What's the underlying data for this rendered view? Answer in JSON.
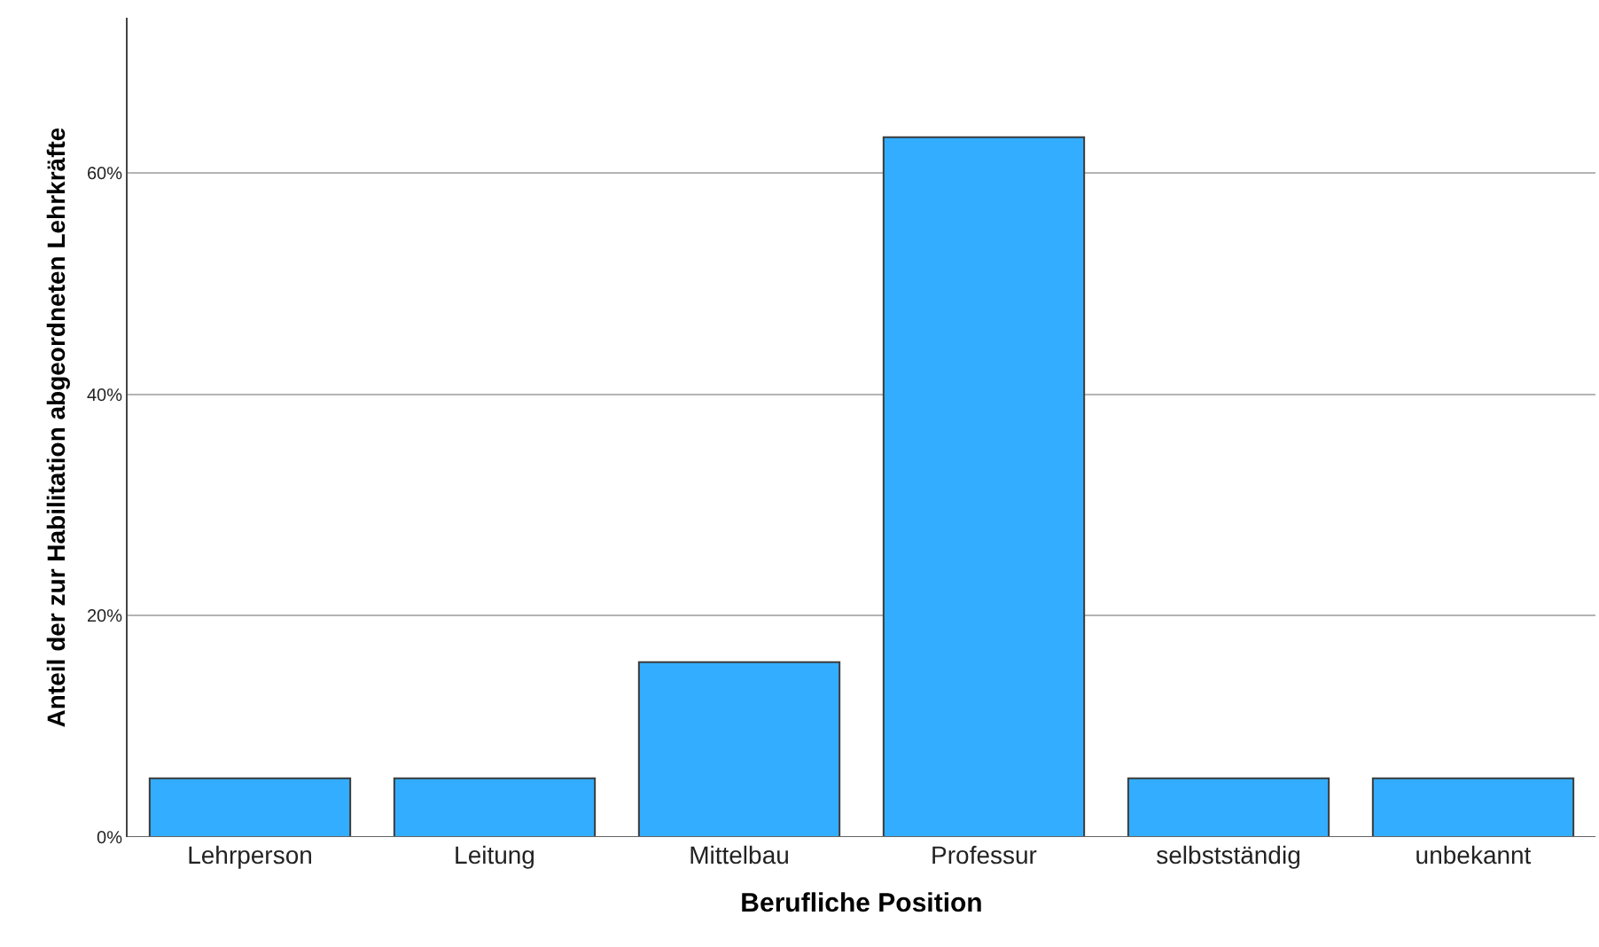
{
  "chart_data": {
    "type": "bar",
    "xlabel": "Berufliche Position",
    "ylabel": "Anteil der zur Habilitation abgeordneten Lehrkräfte",
    "categories": [
      "Lehrperson",
      "Leitung",
      "Mittelbau",
      "Professur",
      "selbstständig",
      "unbekannt"
    ],
    "values": [
      5.3,
      5.3,
      15.8,
      63.2,
      5.3,
      5.3
    ],
    "color": "#33adff",
    "ylim": [
      0,
      74
    ],
    "yticks": [
      {
        "value": 0,
        "label": "0%"
      },
      {
        "value": 20,
        "label": "20%"
      },
      {
        "value": 40,
        "label": "40%"
      },
      {
        "value": 60,
        "label": "60%"
      }
    ],
    "grid": "y"
  }
}
